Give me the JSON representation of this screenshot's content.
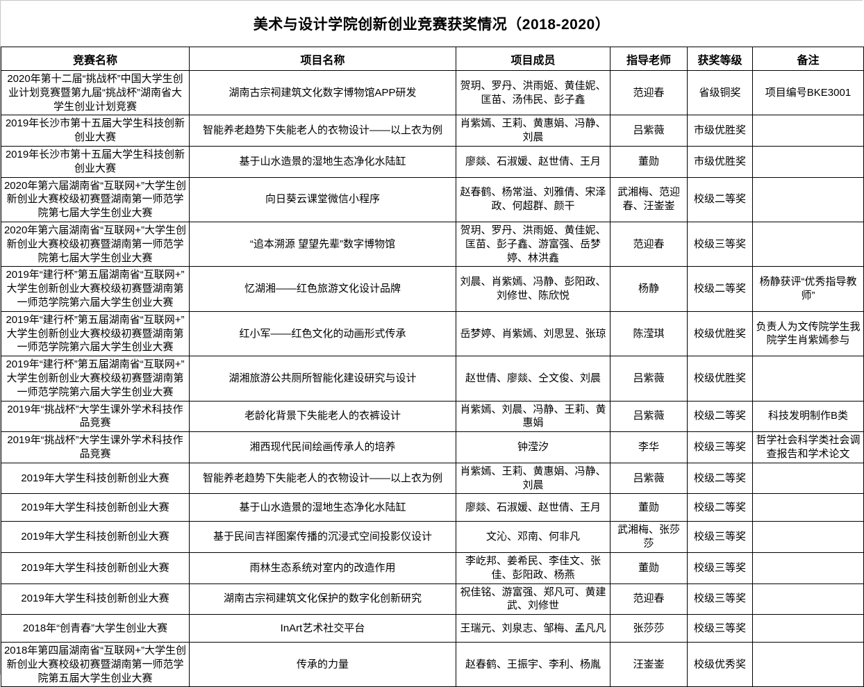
{
  "title": "美术与设计学院创新创业竞赛获奖情况（2018-2020）",
  "colors": {
    "table_border": "#000000",
    "page_background": "#ffffff",
    "edge_gridline": "#c6c6c6",
    "text": "#000000"
  },
  "table": {
    "columns": [
      "竞赛名称",
      "项目名称",
      "项目成员",
      "指导老师",
      "获奖等级",
      "备注"
    ],
    "rows": [
      {
        "competition": "2020年第十二届“挑战杯”中国大学生创业计划竞赛暨第九届“挑战杯”湖南省大学生创业计划竞赛",
        "project": "湖南古宗祠建筑文化数字博物馆APP研发",
        "members": "贺玥、罗丹、洪雨姬、黄佳妮、匡苗、汤伟民、彭子鑫",
        "advisor": "范迎春",
        "award": "省级铜奖",
        "remarks": "项目编号BKE3001"
      },
      {
        "competition": "2019年长沙市第十五届大学生科技创新创业大赛",
        "project": "智能养老趋势下失能老人的衣物设计——以上衣为例",
        "members": "肖紫嫣、王莉、黄惠娟、冯静、刘晨",
        "advisor": "吕紫薇",
        "award": "市级优胜奖",
        "remarks": ""
      },
      {
        "competition": "2019年长沙市第十五届大学生科技创新创业大赛",
        "project": "基于山水造景的湿地生态净化水陆缸",
        "members": "廖燚、石淑媛、赵世倩、王月",
        "advisor": "董勋",
        "award": "市级优胜奖",
        "remarks": ""
      },
      {
        "competition": "2020年第六届湖南省“互联网+”大学生创新创业大赛校级初赛暨湖南第一师范学院第七届大学生创业大赛",
        "project": "向日葵云课堂微信小程序",
        "members": "赵春鹤、杨常溢、刘雅倩、宋泽政、何超群、颜干",
        "advisor": "武湘梅、范迎春、汪崟崟",
        "award": "校级二等奖",
        "remarks": ""
      },
      {
        "competition": "2020年第六届湖南省“互联网+”大学生创新创业大赛校级初赛暨湖南第一师范学院第七届大学生创业大赛",
        "project": "“追本溯源 望望先辈”数字博物馆",
        "members": "贺玥、罗丹、洪雨姬、黄佳妮、匡苗、彭子鑫、游富强、岳梦婷、林洪鑫",
        "advisor": "范迎春",
        "award": "校级三等奖",
        "remarks": ""
      },
      {
        "competition": "2019年“建行杯”第五届湖南省“互联网+”大学生创新创业大赛校级初赛暨湖南第一师范学院第六届大学生创业大赛",
        "project": "忆湖湘——红色旅游文化设计品牌",
        "members": "刘晨、肖紫嫣、冯静、彭阳政、刘修世、陈欣悦",
        "advisor": "杨静",
        "award": "校级二等奖",
        "remarks": "杨静获评“优秀指导教师”"
      },
      {
        "competition": "2019年“建行杯”第五届湖南省“互联网+”大学生创新创业大赛校级初赛暨湖南第一师范学院第六届大学生创业大赛",
        "project": "红小军——红色文化的动画形式传承",
        "members": "岳梦婷、肖紫嫣、刘思昱、张琼",
        "advisor": "陈滢琪",
        "award": "校级优胜奖",
        "remarks": "负责人为文传院学生我院学生肖紫嫣参与"
      },
      {
        "competition": "2019年“建行杯”第五届湖南省“互联网+”大学生创新创业大赛校级初赛暨湖南第一师范学院第六届大学生创业大赛",
        "project": "湖湘旅游公共厕所智能化建设研究与设计",
        "members": "赵世倩、廖燚、仝文俊、刘晨",
        "advisor": "吕紫薇",
        "award": "校级优胜奖",
        "remarks": ""
      },
      {
        "competition": "2019年“挑战杯”大学生课外学术科技作品竞赛",
        "project": "老龄化背景下失能老人的衣裤设计",
        "members": "肖紫嫣、刘晨、冯静、王莉、黄惠娟",
        "advisor": "吕紫薇",
        "award": "校级二等奖",
        "remarks": "科技发明制作B类"
      },
      {
        "competition": "2019年“挑战杯”大学生课外学术科技作品竞赛",
        "project": "湘西现代民间绘画传承人的培养",
        "members": "钟滢汐",
        "advisor": "李华",
        "award": "校级三等奖",
        "remarks": "哲学社会科学类社会调查报告和学术论文"
      },
      {
        "competition": "2019年大学生科技创新创业大赛",
        "project": "智能养老趋势下失能老人的衣物设计——以上衣为例",
        "members": "肖紫嫣、王莉、黄惠娟、冯静、刘晨",
        "advisor": "吕紫薇",
        "award": "校级二等奖",
        "remarks": ""
      },
      {
        "competition": "2019年大学生科技创新创业大赛",
        "project": "基于山水造景的湿地生态净化水陆缸",
        "members": "廖燚、石淑媛、赵世倩、王月",
        "advisor": "董勋",
        "award": "校级二等奖",
        "remarks": ""
      },
      {
        "competition": "2019年大学生科技创新创业大赛",
        "project": "基于民间吉祥图案传播的沉浸式空间投影仪设计",
        "members": "文沁、邓南、何非凡",
        "advisor": "武湘梅、张莎莎",
        "award": "校级三等奖",
        "remarks": ""
      },
      {
        "competition": "2019年大学生科技创新创业大赛",
        "project": "雨林生态系统对室内的改造作用",
        "members": "李屹邦、姜希民、李佳文、张佳、彭阳政、杨燕",
        "advisor": "董勋",
        "award": "校级三等奖",
        "remarks": ""
      },
      {
        "competition": "2019年大学生科技创新创业大赛",
        "project": "湖南古宗祠建筑文化保护的数字化创新研究",
        "members": "祝佳铭、游富强、郑凡可、黄建武、刘修世",
        "advisor": "范迎春",
        "award": "校级三等奖",
        "remarks": ""
      },
      {
        "competition": "2018年“创青春”大学生创业大赛",
        "project": "InArt艺术社交平台",
        "members": "王瑞元、刘泉志、邹梅、孟凡凡",
        "advisor": "张莎莎",
        "award": "校级三等奖",
        "remarks": ""
      },
      {
        "competition": "2018年第四届湖南省“互联网+”大学生创新创业大赛校级初赛暨湖南第一师范学院第五届大学生创业大赛",
        "project": "传承的力量",
        "members": "赵春鹤、王振宇、李利、杨胤",
        "advisor": "汪崟崟",
        "award": "校级优秀奖",
        "remarks": ""
      }
    ]
  }
}
